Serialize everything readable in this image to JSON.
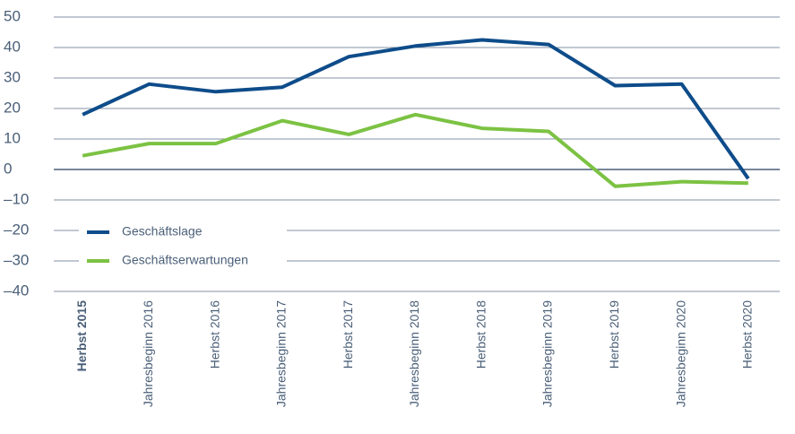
{
  "chart_data": {
    "type": "line",
    "categories": [
      "Herbst 2015",
      "Jahresbeginn 2016",
      "Herbst 2016",
      "Jahresbeginn 2017",
      "Herbst 2017",
      "Jahresbeginn 2018",
      "Herbst 2018",
      "Jahresbeginn 2019",
      "Herbst 2019",
      "Jahresbeginn 2020",
      "Herbst 2020"
    ],
    "series": [
      {
        "name": "Geschäftslage",
        "color": "#0e4c8a",
        "values": [
          18,
          28,
          25.5,
          27,
          37,
          40.5,
          42.5,
          41,
          27.5,
          28,
          -3
        ]
      },
      {
        "name": "Geschäftserwartungen",
        "color": "#7cc243",
        "values": [
          4.5,
          8.5,
          8.5,
          16,
          11.5,
          18,
          13.5,
          12.5,
          -5.5,
          -4,
          -4.5
        ]
      }
    ],
    "ylim": [
      -40,
      50
    ],
    "yticks": [
      50,
      40,
      30,
      20,
      10,
      0,
      {
        "value": -10,
        "label": "–10"
      },
      {
        "value": -20,
        "label": "–20"
      },
      {
        "value": -30,
        "label": "–30"
      },
      {
        "value": -40,
        "label": "–40"
      }
    ],
    "grid": true,
    "legend": "lower left"
  }
}
